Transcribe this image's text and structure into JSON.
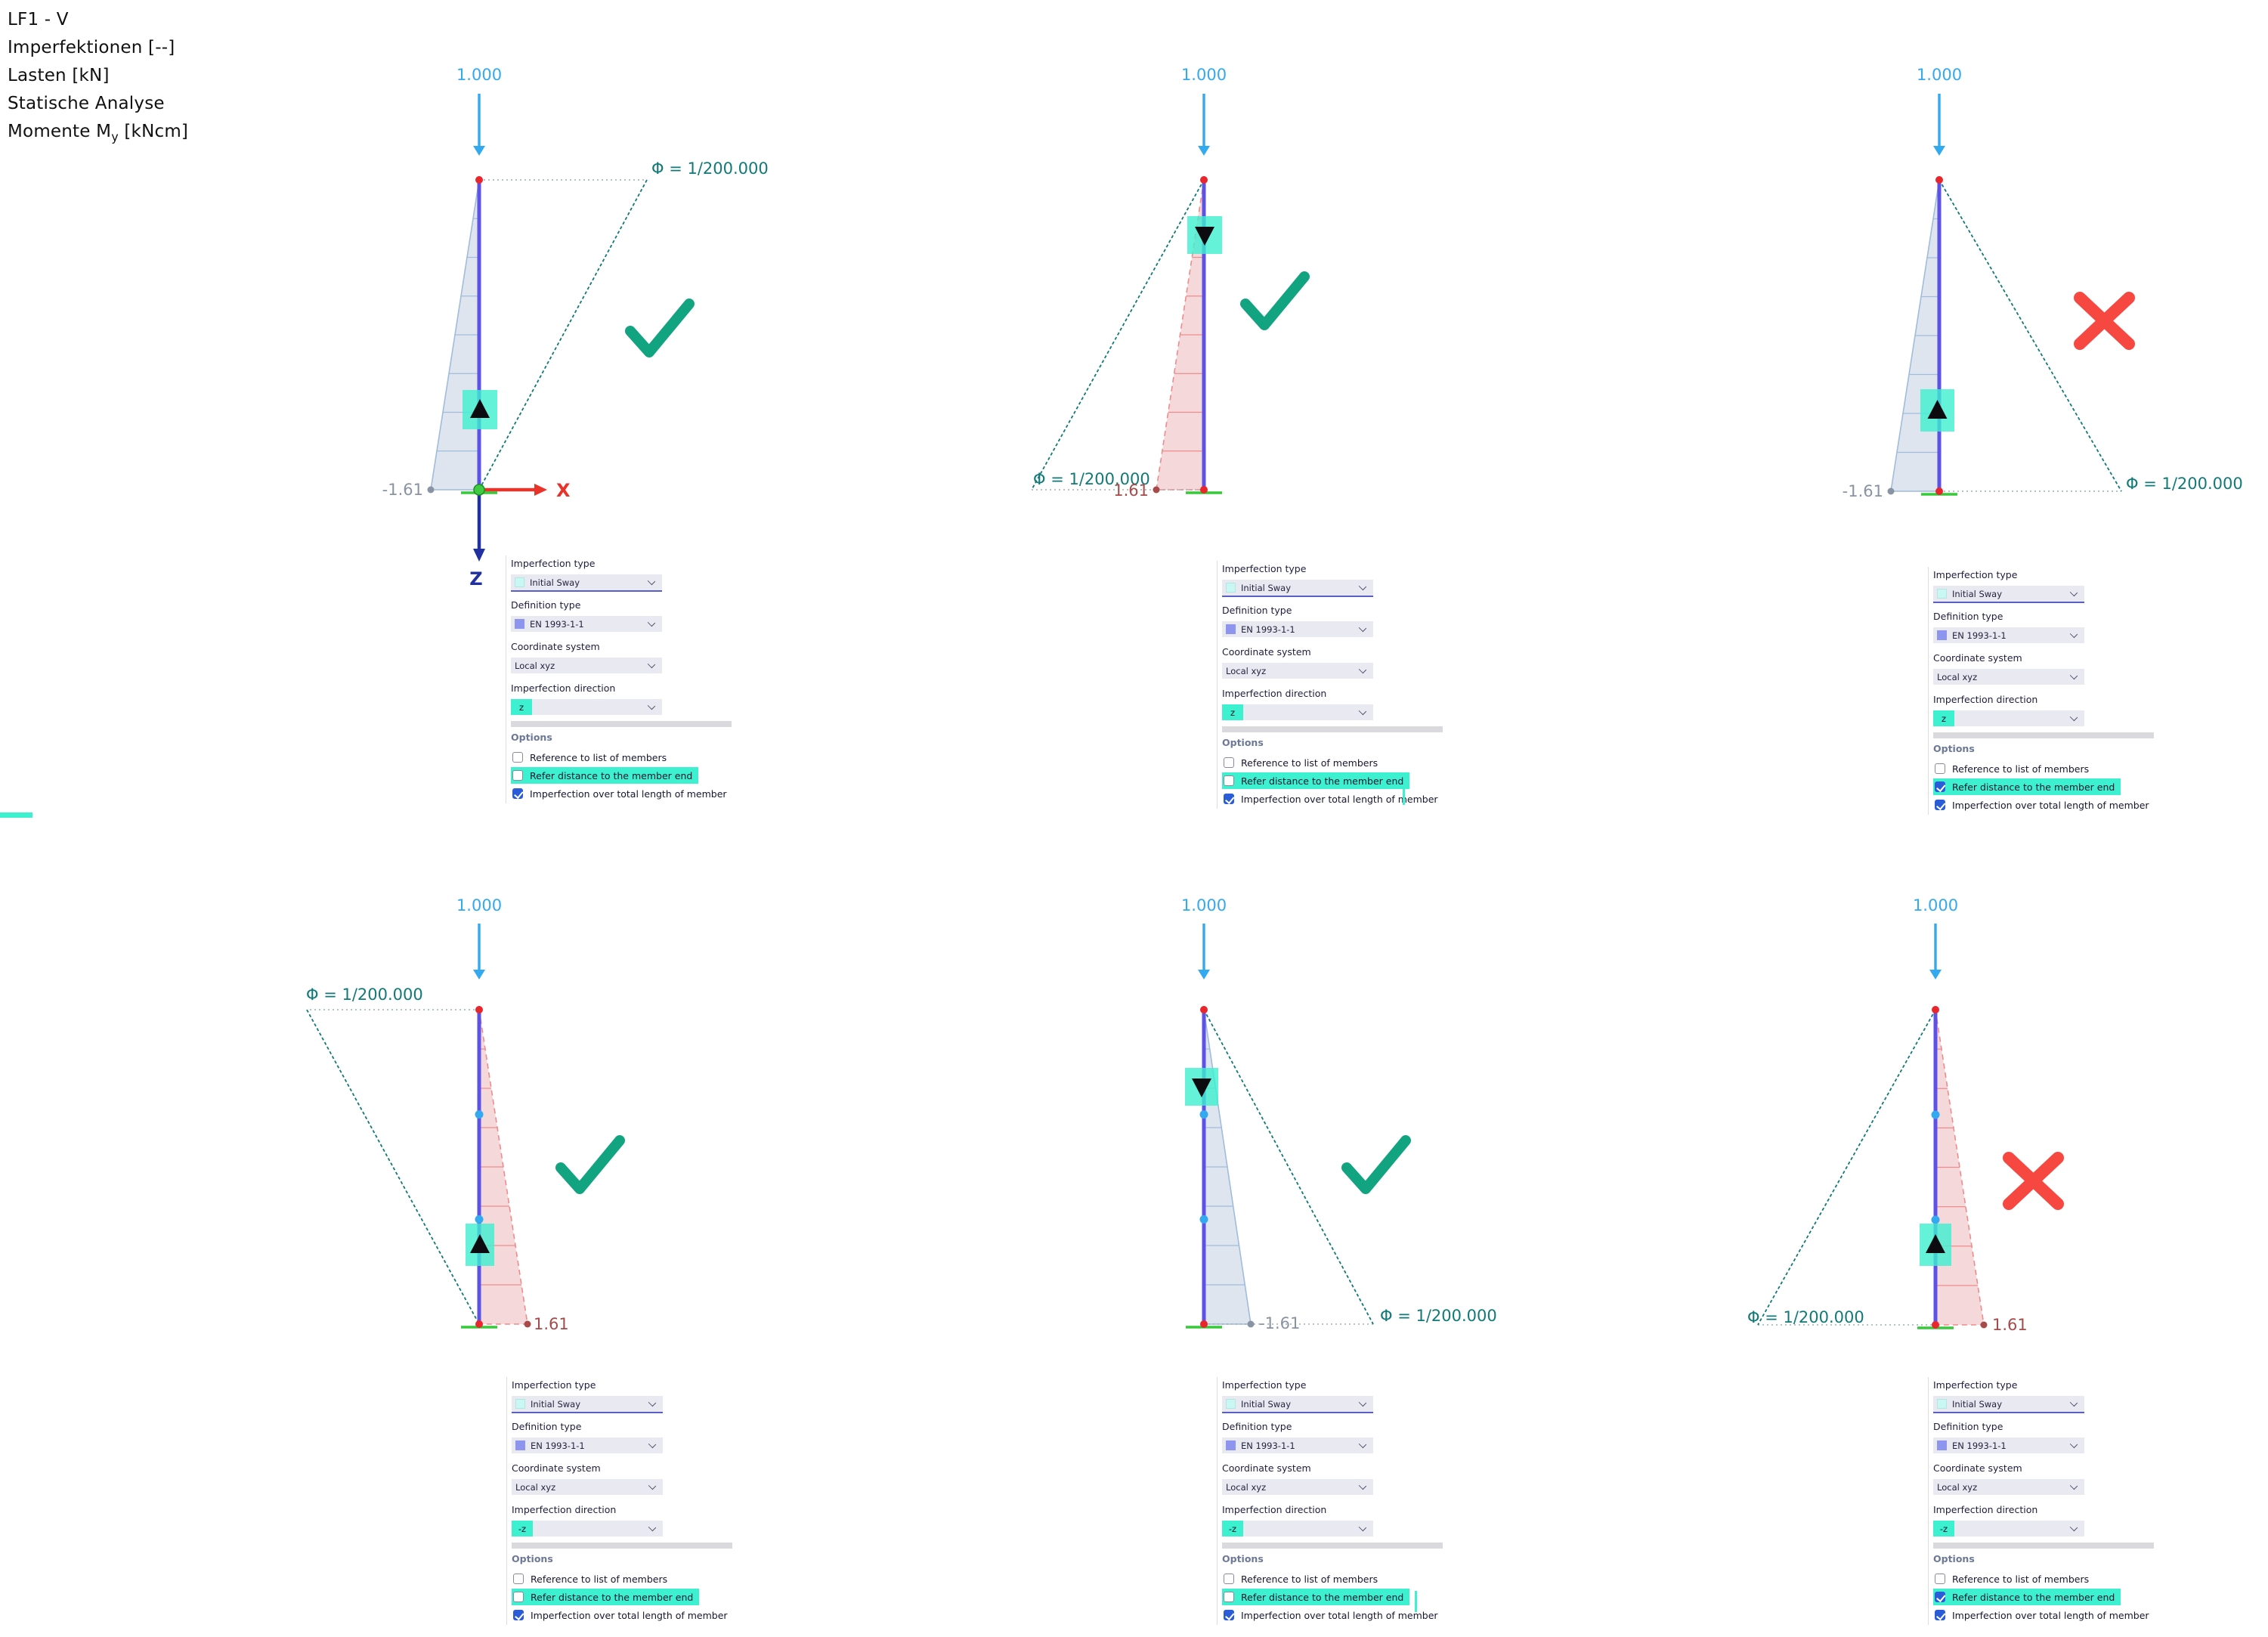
{
  "title_block": {
    "lines": [
      "LF1 - V",
      "Imperfektionen [--]",
      "Lasten [kN]",
      "Statische Analyse"
    ],
    "moment_line": {
      "pre": "Momente M",
      "sub": "y",
      "post": " [kNcm]"
    }
  },
  "shared_labels": {
    "imperfection_type": "Imperfection type",
    "definition_type": "Definition type",
    "coordinate_system": "Coordinate system",
    "imperfection_direction": "Imperfection direction",
    "options": "Options"
  },
  "diagram_labels": {
    "load": "1.000",
    "phi": "Φ = 1/200.000",
    "axis_x": "X",
    "axis_z": "Z"
  },
  "colors": {
    "load_blue": "#33a9f0",
    "member_purple": "#5c52e6",
    "node_red": "#e8262c",
    "sway_teal": "#117a78",
    "reference_dotted": "#9ab0b0",
    "moment_negative_fill": "#d8dfec",
    "moment_negative_line": "#9fbcdc",
    "moment_positive_fill": "#f3d0d2",
    "moment_positive_line": "#ef8b8b",
    "value_negative": "#8893a3",
    "value_positive": "#a64a4a",
    "check_green": "#12a380",
    "cross_red": "#f64840",
    "highlight_cyan": "#3df0d0",
    "axis_x_red": "#e8332a",
    "axis_z_navy": "#20309e",
    "origin_green": "#3ecb42",
    "support_green": "#36c93a",
    "orientation_arrow_black": "#0c0c10"
  },
  "panels": [
    {
      "name": "top-left",
      "result": "correct",
      "diagram": {
        "moment_value": "-1.61",
        "moment_sign": "negative",
        "moment_side": "left",
        "member_orientation_arrow": "up",
        "shows_global_axes": true
      },
      "settings": {
        "imperfection_type": "Initial Sway",
        "definition_type": "EN 1993-1-1",
        "coordinate_system": "Local xyz",
        "imperfection_direction": "z",
        "options": [
          {
            "label": "Reference to list of members",
            "checked": false,
            "highlighted": false
          },
          {
            "label": "Refer distance to the member end",
            "checked": false,
            "highlighted": true
          },
          {
            "label": "Imperfection over total length of member",
            "checked": true,
            "highlighted": false
          }
        ]
      }
    },
    {
      "name": "top-middle",
      "result": "correct",
      "diagram": {
        "moment_value": "1.61",
        "moment_sign": "positive",
        "moment_side": "left",
        "member_orientation_arrow": "down",
        "shows_global_axes": false
      },
      "settings": {
        "imperfection_type": "Initial Sway",
        "definition_type": "EN 1993-1-1",
        "coordinate_system": "Local xyz",
        "imperfection_direction": "z",
        "options": [
          {
            "label": "Reference to list of members",
            "checked": false,
            "highlighted": false
          },
          {
            "label": "Refer distance to the member end",
            "checked": false,
            "highlighted": true
          },
          {
            "label": "Imperfection over total length of member",
            "checked": true,
            "highlighted": false
          }
        ]
      }
    },
    {
      "name": "top-right",
      "result": "incorrect",
      "diagram": {
        "moment_value": "-1.61",
        "moment_sign": "negative",
        "moment_side": "left",
        "member_orientation_arrow": "up",
        "shows_global_axes": false
      },
      "settings": {
        "imperfection_type": "Initial Sway",
        "definition_type": "EN 1993-1-1",
        "coordinate_system": "Local xyz",
        "imperfection_direction": "z",
        "options": [
          {
            "label": "Reference to list of members",
            "checked": false,
            "highlighted": false
          },
          {
            "label": "Refer distance to the member end",
            "checked": true,
            "highlighted": true
          },
          {
            "label": "Imperfection over total length of member",
            "checked": true,
            "highlighted": false
          }
        ]
      }
    },
    {
      "name": "bottom-left",
      "result": "correct",
      "diagram": {
        "moment_value": "1.61",
        "moment_sign": "positive",
        "moment_side": "right",
        "member_orientation_arrow": "up",
        "shows_global_axes": false
      },
      "settings": {
        "imperfection_type": "Initial Sway",
        "definition_type": "EN 1993-1-1",
        "coordinate_system": "Local xyz",
        "imperfection_direction": "-z",
        "options": [
          {
            "label": "Reference to list of members",
            "checked": false,
            "highlighted": false
          },
          {
            "label": "Refer distance to the member end",
            "checked": false,
            "highlighted": true
          },
          {
            "label": "Imperfection over total length of member",
            "checked": true,
            "highlighted": false
          }
        ]
      }
    },
    {
      "name": "bottom-middle",
      "result": "correct",
      "diagram": {
        "moment_value": "-1.61",
        "moment_sign": "negative",
        "moment_side": "right",
        "member_orientation_arrow": "down",
        "shows_global_axes": false
      },
      "settings": {
        "imperfection_type": "Initial Sway",
        "definition_type": "EN 1993-1-1",
        "coordinate_system": "Local xyz",
        "imperfection_direction": "-z",
        "options": [
          {
            "label": "Reference to list of members",
            "checked": false,
            "highlighted": false
          },
          {
            "label": "Refer distance to the member end",
            "checked": false,
            "highlighted": true
          },
          {
            "label": "Imperfection over total length of member",
            "checked": true,
            "highlighted": false
          }
        ]
      }
    },
    {
      "name": "bottom-right",
      "result": "incorrect",
      "diagram": {
        "moment_value": "1.61",
        "moment_sign": "positive",
        "moment_side": "right",
        "member_orientation_arrow": "up",
        "shows_global_axes": false
      },
      "settings": {
        "imperfection_type": "Initial Sway",
        "definition_type": "EN 1993-1-1",
        "coordinate_system": "Local xyz",
        "imperfection_direction": "-z",
        "options": [
          {
            "label": "Reference to list of members",
            "checked": false,
            "highlighted": false
          },
          {
            "label": "Refer distance to the member end",
            "checked": true,
            "highlighted": true
          },
          {
            "label": "Imperfection over total length of member",
            "checked": true,
            "highlighted": false
          }
        ]
      }
    }
  ]
}
